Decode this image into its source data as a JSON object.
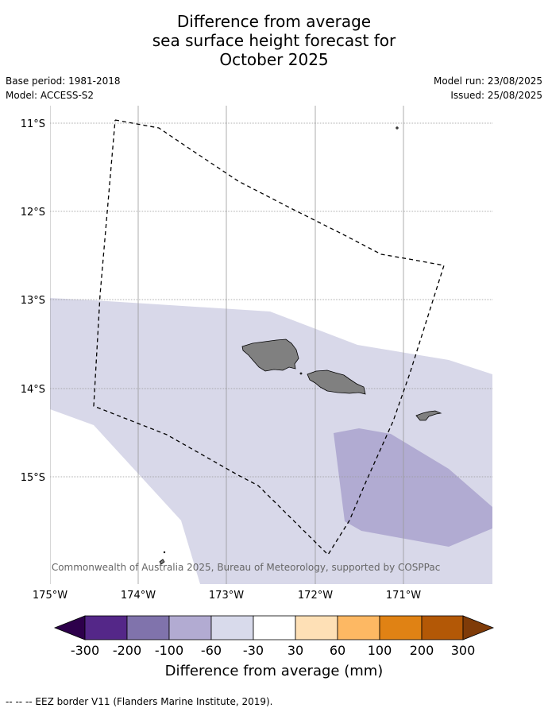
{
  "title": {
    "line1": "Difference from average",
    "line2": "sea surface height forecast for",
    "line3": "October 2025"
  },
  "meta": {
    "base_period": "Base period: 1981-2018",
    "model": "Model: ACCESS-S2",
    "model_run": "Model run: 23/08/2025",
    "issued": "Issued: 25/08/2025"
  },
  "map": {
    "lat_labels": [
      "11°S",
      "12°S",
      "13°S",
      "14°S",
      "15°S"
    ],
    "lon_labels": [
      "175°W",
      "174°W",
      "173°W",
      "172°W",
      "171°W"
    ],
    "copyright": "© Commonwealth of Australia 2025, Bureau of Meteorology, supported by COSPPac",
    "land_color": "#808080",
    "anomaly_colors": {
      "-30_to_-60": "#d8d8e9",
      "-60_to_-100": "#b1abd2"
    }
  },
  "legend": {
    "ticks": [
      "-300",
      "-200",
      "-100",
      "-60",
      "-30",
      "30",
      "60",
      "100",
      "200",
      "300"
    ],
    "colors": [
      "#2d004b",
      "#542788",
      "#8073ac",
      "#b2abd2",
      "#d8daeb",
      "#ffffff",
      "#fee0b6",
      "#fdb863",
      "#e08214",
      "#b35806",
      "#7f3b08"
    ],
    "caption": "Difference from average (mm)"
  },
  "footer": "--  --  -- EEZ border V11 (Flanders Marine Institute, 2019)."
}
